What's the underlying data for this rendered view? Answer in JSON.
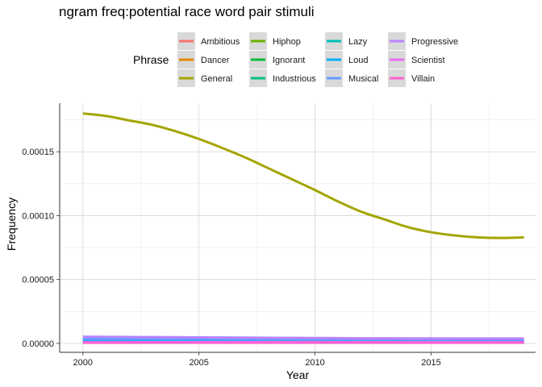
{
  "chart_data": {
    "type": "line",
    "title": "ngram freq:potential race word pair stimuli",
    "xlabel": "Year",
    "ylabel": "Frequency",
    "xlim": [
      1999,
      2019.5
    ],
    "ylim": [
      -7e-06,
      0.000188
    ],
    "x_ticks": [
      2000,
      2005,
      2010,
      2015
    ],
    "x_tick_labels": [
      "2000",
      "2005",
      "2010",
      "2015"
    ],
    "y_ticks": [
      0,
      5e-05,
      0.0001,
      0.00015
    ],
    "y_tick_labels": [
      "0.00000",
      "0.00005",
      "0.00010",
      "0.00015"
    ],
    "grid": true,
    "legend": {
      "title": "Phrase",
      "position": "top"
    },
    "x": [
      2000,
      2001,
      2002,
      2003,
      2004,
      2005,
      2006,
      2007,
      2008,
      2009,
      2010,
      2011,
      2012,
      2013,
      2014,
      2015,
      2016,
      2017,
      2018,
      2019
    ],
    "series": [
      {
        "name": "Ambitious",
        "color": "#F8766D",
        "values": [
          2e-06,
          2e-06,
          2e-06,
          2e-06,
          2e-06,
          2e-06,
          2e-06,
          2e-06,
          2e-06,
          2e-06,
          2e-06,
          2e-06,
          2e-06,
          2e-06,
          2e-06,
          2e-06,
          2e-06,
          2e-06,
          2e-06,
          2e-06
        ]
      },
      {
        "name": "Dancer",
        "color": "#E58700",
        "values": [
          1.5e-06,
          1.5e-06,
          1.5e-06,
          1.5e-06,
          1.5e-06,
          1.5e-06,
          1.5e-06,
          1.5e-06,
          1.5e-06,
          1.5e-06,
          1.5e-06,
          1.5e-06,
          1.5e-06,
          1.5e-06,
          1.5e-06,
          1.5e-06,
          1.5e-06,
          1.5e-06,
          1.5e-06,
          1.5e-06
        ]
      },
      {
        "name": "General",
        "color": "#A3A500",
        "values": [
          0.00018,
          0.000178,
          0.0001745,
          0.000171,
          0.000166,
          0.00016,
          0.000153,
          0.0001455,
          0.000137,
          0.0001285,
          0.00012,
          0.000111,
          0.000103,
          9.7e-05,
          9.1e-05,
          8.7e-05,
          8.45e-05,
          8.3e-05,
          8.25e-05,
          8.3e-05
        ]
      },
      {
        "name": "Hiphop",
        "color": "#6BB100",
        "values": [
          8e-07,
          8e-07,
          8e-07,
          8e-07,
          8e-07,
          8e-07,
          8e-07,
          8e-07,
          8e-07,
          8e-07,
          8e-07,
          8e-07,
          8e-07,
          8e-07,
          8e-07,
          8e-07,
          8e-07,
          8e-07,
          8e-07,
          8e-07
        ]
      },
      {
        "name": "Ignorant",
        "color": "#00BA38",
        "values": [
          1.8e-06,
          1.8e-06,
          1.8e-06,
          1.8e-06,
          1.8e-06,
          1.8e-06,
          1.8e-06,
          1.8e-06,
          1.8e-06,
          1.8e-06,
          1.8e-06,
          1.8e-06,
          1.8e-06,
          1.8e-06,
          1.8e-06,
          1.8e-06,
          1.8e-06,
          1.8e-06,
          1.8e-06,
          1.8e-06
        ]
      },
      {
        "name": "Industrious",
        "color": "#00BF7D",
        "values": [
          6e-07,
          6e-07,
          6e-07,
          6e-07,
          6e-07,
          6e-07,
          6e-07,
          6e-07,
          6e-07,
          6e-07,
          6e-07,
          6e-07,
          6e-07,
          6e-07,
          6e-07,
          6e-07,
          6e-07,
          6e-07,
          6e-07,
          6e-07
        ]
      },
      {
        "name": "Lazy",
        "color": "#00C0B8",
        "values": [
          1.2e-06,
          1.2e-06,
          1.2e-06,
          1.2e-06,
          1.2e-06,
          1.2e-06,
          1.2e-06,
          1.2e-06,
          1.2e-06,
          1.2e-06,
          1.2e-06,
          1.2e-06,
          1.2e-06,
          1.2e-06,
          1.2e-06,
          1.2e-06,
          1.2e-06,
          1.2e-06,
          1.2e-06,
          1.2e-06
        ]
      },
      {
        "name": "Loud",
        "color": "#00B0F6",
        "values": [
          2e-06,
          2e-06,
          2e-06,
          2e-06,
          2e-06,
          2e-06,
          2e-06,
          2e-06,
          2e-06,
          2e-06,
          2e-06,
          2e-06,
          2e-06,
          2e-06,
          2e-06,
          2e-06,
          2e-06,
          2e-06,
          2e-06,
          2e-06
        ]
      },
      {
        "name": "Musical",
        "color": "#619CFF",
        "values": [
          3.5e-06,
          3.5e-06,
          3.4e-06,
          3.4e-06,
          3.3e-06,
          3.3e-06,
          3.2e-06,
          3.2e-06,
          3.1e-06,
          3.1e-06,
          3e-06,
          3e-06,
          3e-06,
          3e-06,
          3e-06,
          3e-06,
          3e-06,
          3e-06,
          3e-06,
          3e-06
        ]
      },
      {
        "name": "Progressive",
        "color": "#B983FF",
        "values": [
          5.2e-06,
          5.1e-06,
          5e-06,
          4.9e-06,
          4.8e-06,
          4.7e-06,
          4.6e-06,
          4.5e-06,
          4.4e-06,
          4.3e-06,
          4.2e-06,
          4.1e-06,
          4e-06,
          4e-06,
          3.9e-06,
          3.9e-06,
          3.8e-06,
          3.8e-06,
          3.8e-06,
          3.8e-06
        ]
      },
      {
        "name": "Scientist",
        "color": "#E76BF3",
        "values": [
          1e-06,
          1e-06,
          1e-06,
          1e-06,
          1e-06,
          1e-06,
          1e-06,
          1e-06,
          1e-06,
          1e-06,
          1e-06,
          1e-06,
          1e-06,
          1e-06,
          1e-06,
          1e-06,
          1e-06,
          1e-06,
          1e-06,
          1e-06
        ]
      },
      {
        "name": "Villain",
        "color": "#FD61D1",
        "values": [
          5e-07,
          5e-07,
          5e-07,
          5e-07,
          5e-07,
          5e-07,
          5e-07,
          5e-07,
          5e-07,
          5e-07,
          5e-07,
          5e-07,
          5e-07,
          5e-07,
          5e-07,
          5e-07,
          5e-07,
          5e-07,
          5e-07,
          5e-07
        ]
      }
    ]
  }
}
